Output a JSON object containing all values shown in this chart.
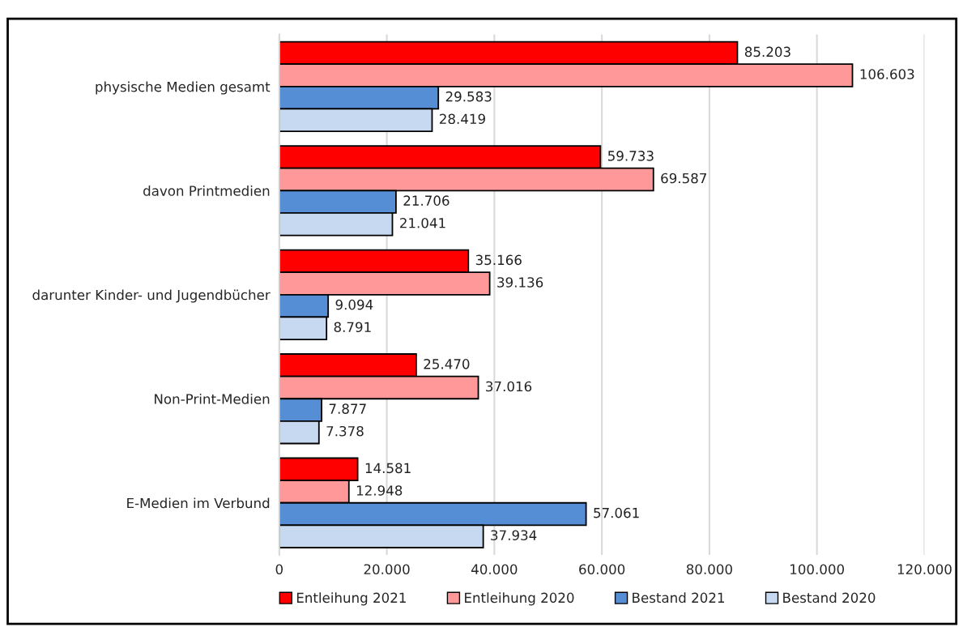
{
  "chart_data": {
    "type": "bar",
    "orientation": "horizontal",
    "categories": [
      "physische Medien gesamt",
      "davon Printmedien",
      "darunter Kinder- und Jugendbücher",
      "Non-Print-Medien",
      "E-Medien im Verbund"
    ],
    "series": [
      {
        "name": "Entleihung 2021",
        "color": "#ff0000",
        "values": [
          85203,
          59733,
          35166,
          25470,
          14581
        ],
        "value_labels": [
          "85.203",
          "59.733",
          "35.166",
          "25.470",
          "14.581"
        ]
      },
      {
        "name": "Entleihung 2020",
        "color": "#ff9999",
        "values": [
          106603,
          69587,
          39136,
          37016,
          12948
        ],
        "value_labels": [
          "106.603",
          "69.587",
          "39.136",
          "37.016",
          "12.948"
        ]
      },
      {
        "name": "Bestand 2021",
        "color": "#558ed5",
        "values": [
          29583,
          21706,
          9094,
          7877,
          57061
        ],
        "value_labels": [
          "29.583",
          "21.706",
          "9.094",
          "7.877",
          "57.061"
        ]
      },
      {
        "name": "Bestand 2020",
        "color": "#c6d9f1",
        "values": [
          28419,
          21041,
          8791,
          7378,
          37934
        ],
        "value_labels": [
          "28.419",
          "21.041",
          "8.791",
          "7.378",
          "37.934"
        ]
      }
    ],
    "xlim": [
      0,
      120000
    ],
    "xticks": [
      0,
      {
        "value": 20000,
        "label": "20.000"
      },
      {
        "value": 40000,
        "label": "40.000"
      },
      {
        "value": 60000,
        "label": "60.000"
      },
      {
        "value": 80000,
        "label": "80.000"
      },
      {
        "value": 100000,
        "label": "100.000"
      },
      {
        "value": 120000,
        "label": "120.000"
      }
    ],
    "grid": "x",
    "legend": "bottom"
  }
}
